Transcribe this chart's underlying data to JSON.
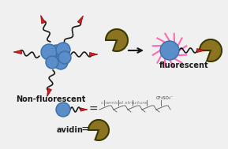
{
  "bg_color": "#f0f0f0",
  "blue_color": "#5b8ec9",
  "blue_dark_outline": "#3a6fa8",
  "red_color": "#cc2222",
  "olive_color": "#8b7322",
  "olive_outline": "#3a3a00",
  "pink_color": "#ff69b4",
  "arrow_color": "#1a1a1a",
  "text_color": "#1a1a1a",
  "label_nonfluorescent": "Non-fluorescent",
  "label_fluorescent": "fluorescent",
  "label_avidin": "avidin",
  "label_equals": "=",
  "label_cf3so3": "CF₃SO₃⁻"
}
